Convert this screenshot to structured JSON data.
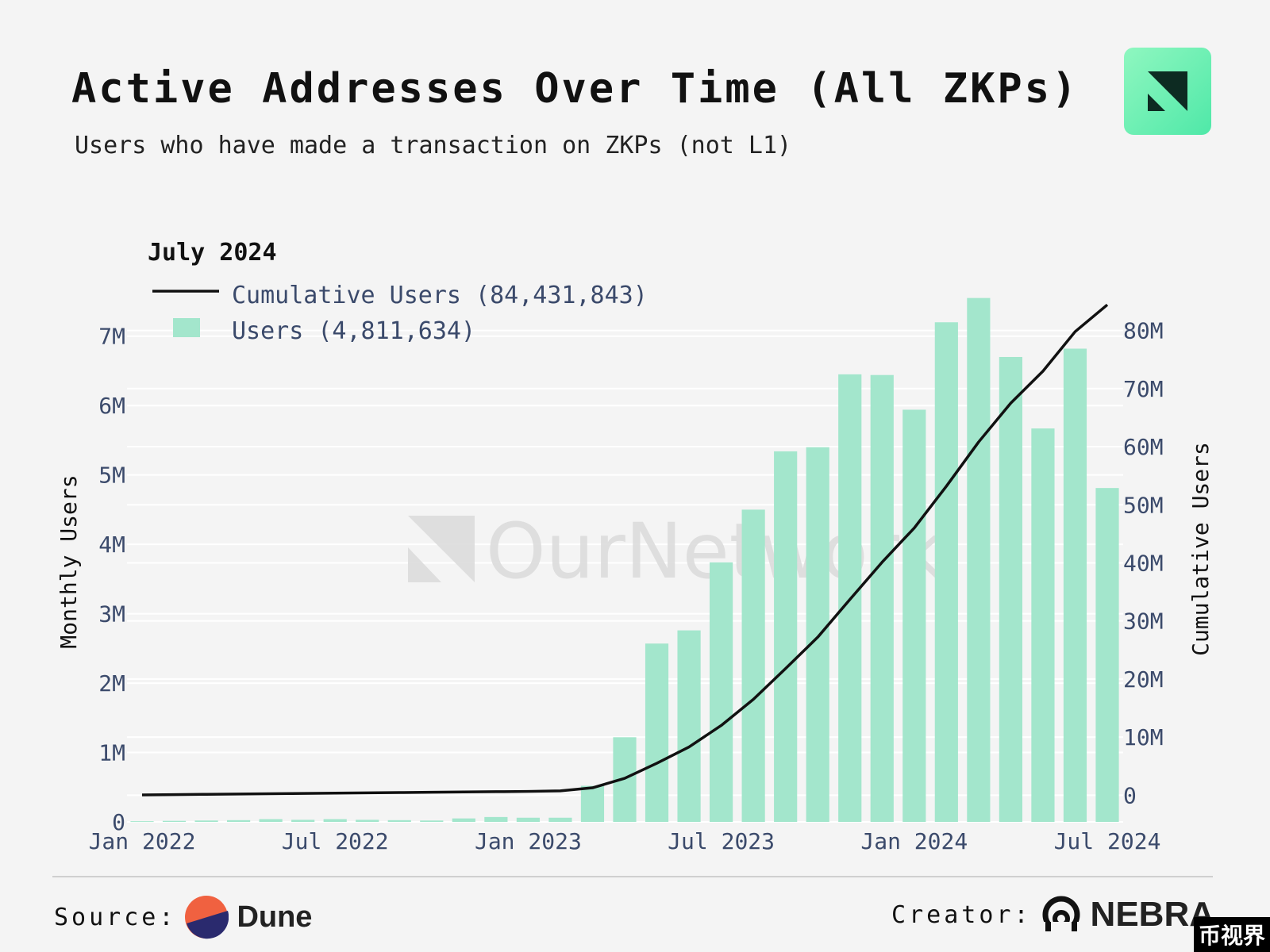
{
  "header": {
    "title": "Active Addresses Over Time (All ZKPs)",
    "subtitle": "Users who have made a transaction on ZKPs (not L1)"
  },
  "colors": {
    "bar": "#a3e6cc",
    "line": "#111111",
    "grid": "#ffffff",
    "axis_text": "#3b4a6b",
    "watermark": "#dcdcdc"
  },
  "watermark": "OurNetwork",
  "chart_data": {
    "type": "bar+line",
    "legend": {
      "title": "July 2024",
      "position": "top-left",
      "line_label": "Cumulative Users (84,431,843)",
      "bar_label": "Users (4,811,634)"
    },
    "categories": [
      "Jan 2022",
      "Feb 2022",
      "Mar 2022",
      "Apr 2022",
      "May 2022",
      "Jun 2022",
      "Jul 2022",
      "Aug 2022",
      "Sep 2022",
      "Oct 2022",
      "Nov 2022",
      "Dec 2022",
      "Jan 2023",
      "Feb 2023",
      "Mar 2023",
      "Apr 2023",
      "May 2023",
      "Jun 2023",
      "Jul 2023",
      "Aug 2023",
      "Sep 2023",
      "Oct 2023",
      "Nov 2023",
      "Dec 2023",
      "Jan 2024",
      "Feb 2024",
      "Mar 2024",
      "Apr 2024",
      "May 2024",
      "Jun 2024",
      "Jul 2024"
    ],
    "x_tick_labels": [
      "Jan 2022",
      "Jul 2022",
      "Jan 2023",
      "Jul 2023",
      "Jan 2024",
      "Jul 2024"
    ],
    "x_tick_indices": [
      0,
      6,
      12,
      18,
      24,
      30
    ],
    "series": [
      {
        "name": "Users",
        "type": "bar",
        "axis": "left",
        "values": [
          10000,
          15000,
          20000,
          25000,
          40000,
          30000,
          40000,
          30000,
          25000,
          20000,
          50000,
          70000,
          60000,
          60000,
          520000,
          1220000,
          2570000,
          2760000,
          3740000,
          4500000,
          5340000,
          5400000,
          6450000,
          6440000,
          5940000,
          7200000,
          7550000,
          6700000,
          5670000,
          6820000,
          4811634
        ]
      },
      {
        "name": "Cumulative Users",
        "type": "line",
        "axis": "right",
        "values": [
          50000,
          100000,
          150000,
          200000,
          250000,
          300000,
          350000,
          400000,
          450000,
          500000,
          550000,
          600000,
          650000,
          750000,
          1270000,
          2900000,
          5500000,
          8300000,
          12000000,
          16500000,
          21800000,
          27200000,
          33700000,
          40100000,
          46000000,
          53200000,
          60800000,
          67500000,
          73000000,
          79800000,
          84431843
        ]
      }
    ],
    "y_left": {
      "label": "Monthly Users",
      "range": [
        0,
        7500000
      ],
      "ticks": [
        0,
        1000000,
        2000000,
        3000000,
        4000000,
        5000000,
        6000000,
        7000000
      ],
      "tick_labels": [
        "0",
        "1M",
        "2M",
        "3M",
        "4M",
        "5M",
        "6M",
        "7M"
      ]
    },
    "y_right": {
      "label": "Cumulative Users",
      "range": [
        -4600000,
        85000000
      ],
      "ticks": [
        0,
        10000000,
        20000000,
        30000000,
        40000000,
        50000000,
        60000000,
        70000000,
        80000000
      ],
      "tick_labels": [
        "0",
        "10M",
        "20M",
        "30M",
        "40M",
        "50M",
        "60M",
        "70M",
        "80M"
      ]
    },
    "grid": true
  },
  "footer": {
    "source_label": "Source:",
    "source_brand": "Dune",
    "creator_label": "Creator:",
    "creator_brand": "NEBRA",
    "corner_watermark": "币视界"
  }
}
